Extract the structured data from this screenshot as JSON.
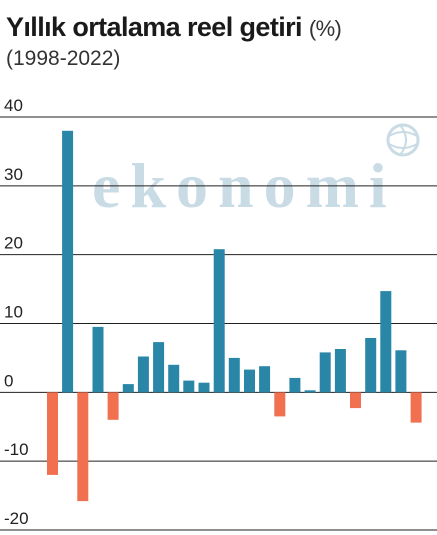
{
  "header": {
    "title": "Yıllık ortalama reel getiri",
    "title_unit": "(%)",
    "subtitle": "(1998-2022)"
  },
  "watermark": "ekonomi",
  "colors": {
    "positive": "#2a86a6",
    "negative": "#f07050",
    "watermark": "#c9dbe4"
  },
  "chart_data": {
    "type": "bar",
    "title": "Yıllık ortalama reel getiri (%)",
    "subtitle": "(1998-2022)",
    "ylim": [
      -20,
      40
    ],
    "yticks": [
      -20,
      -10,
      0,
      10,
      20,
      30,
      40
    ],
    "ytick_labels": [
      "-20",
      "-10",
      "0",
      "10",
      "20",
      "30",
      "40"
    ],
    "grid": true,
    "values": [
      -12,
      38,
      -15.8,
      9.5,
      -4,
      1.2,
      5.2,
      7.3,
      4,
      1.7,
      1.4,
      20.8,
      5,
      3.3,
      3.8,
      -3.5,
      2.1,
      0.3,
      5.8,
      6.3,
      -2.3,
      7.9,
      14.7,
      6.1,
      -4.4
    ],
    "bar_colors": [
      "negative",
      "positive",
      "negative",
      "positive",
      "negative",
      "positive",
      "positive",
      "positive",
      "positive",
      "positive",
      "positive",
      "positive",
      "positive",
      "positive",
      "positive",
      "negative",
      "positive",
      "positive",
      "positive",
      "positive",
      "negative",
      "positive",
      "positive",
      "positive",
      "negative"
    ]
  }
}
